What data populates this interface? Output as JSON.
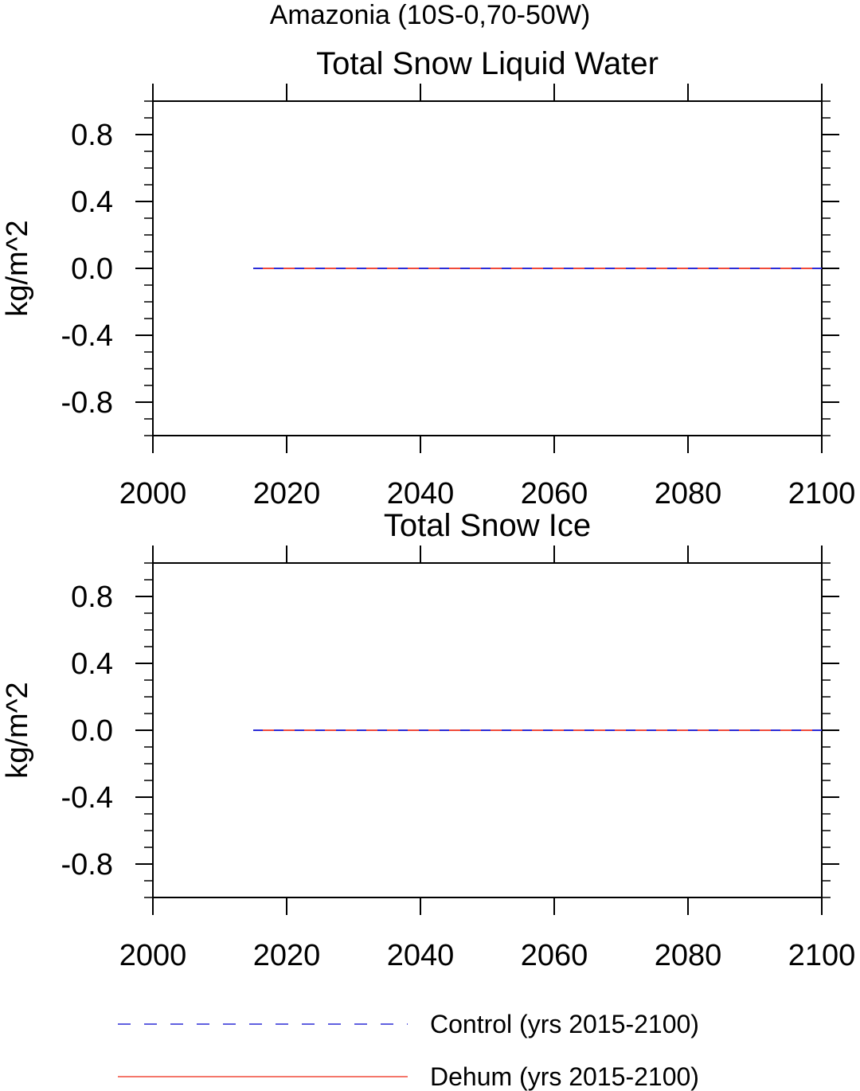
{
  "figure": {
    "title": "Amazonia (10S-0,70-50W)"
  },
  "colors": {
    "control": "#2b2bd6",
    "dehum": "#f04a3a",
    "axes": "#000000",
    "background": "#ffffff"
  },
  "chart_data": [
    {
      "type": "line",
      "title": "Total Snow Liquid Water",
      "xlabel": "",
      "ylabel": "kg/m^2",
      "xlim": [
        2000,
        2100
      ],
      "ylim": [
        -1.0,
        1.0
      ],
      "xticks": [
        2000,
        2020,
        2040,
        2060,
        2080,
        2100
      ],
      "xtick_labels": [
        "2000",
        "2020",
        "2040",
        "2060",
        "2080",
        "2100"
      ],
      "yticks": [
        0.8,
        0.4,
        0.0,
        -0.4,
        -0.8
      ],
      "ytick_labels": [
        "0.8",
        "0.4",
        "0.0",
        "-0.4",
        "-0.8"
      ],
      "grid": false,
      "series": [
        {
          "name": "Control (yrs 2015-2100)",
          "style": "dashed",
          "color": "#2b2bd6",
          "x": [
            2015,
            2100
          ],
          "y": [
            0.0,
            0.0
          ]
        },
        {
          "name": "Dehum (yrs 2015-2100)",
          "style": "solid",
          "color": "#f04a3a",
          "x": [
            2015,
            2100
          ],
          "y": [
            0.0,
            0.0
          ]
        }
      ]
    },
    {
      "type": "line",
      "title": "Total Snow Ice",
      "xlabel": "",
      "ylabel": "kg/m^2",
      "xlim": [
        2000,
        2100
      ],
      "ylim": [
        -1.0,
        1.0
      ],
      "xticks": [
        2000,
        2020,
        2040,
        2060,
        2080,
        2100
      ],
      "xtick_labels": [
        "2000",
        "2020",
        "2040",
        "2060",
        "2080",
        "2100"
      ],
      "yticks": [
        0.8,
        0.4,
        0.0,
        -0.4,
        -0.8
      ],
      "ytick_labels": [
        "0.8",
        "0.4",
        "0.0",
        "-0.4",
        "-0.8"
      ],
      "grid": false,
      "series": [
        {
          "name": "Control (yrs 2015-2100)",
          "style": "dashed",
          "color": "#2b2bd6",
          "x": [
            2015,
            2100
          ],
          "y": [
            0.0,
            0.0
          ]
        },
        {
          "name": "Dehum (yrs 2015-2100)",
          "style": "solid",
          "color": "#f04a3a",
          "x": [
            2015,
            2100
          ],
          "y": [
            0.0,
            0.0
          ]
        }
      ]
    }
  ],
  "legend": {
    "position": "bottom",
    "items": [
      {
        "label": "Control (yrs 2015-2100)",
        "style": "dashed",
        "color": "#2b2bd6"
      },
      {
        "label": "Dehum (yrs 2015-2100)",
        "style": "solid",
        "color": "#f04a3a"
      }
    ]
  }
}
